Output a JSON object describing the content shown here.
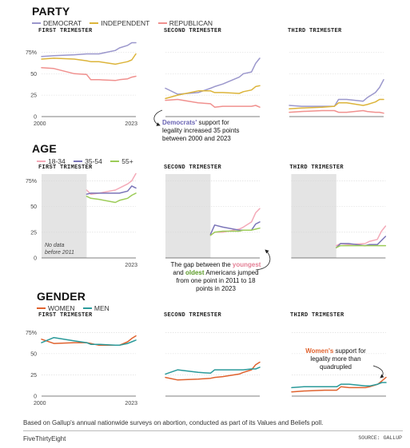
{
  "sections": [
    {
      "title": "PARTY",
      "legend": [
        {
          "label": "DEMOCRAT",
          "color": "#9b97cc"
        },
        {
          "label": "INDEPENDENT",
          "color": "#dcb43a"
        },
        {
          "label": "REPUBLICAN",
          "color": "#f0908e"
        }
      ]
    },
    {
      "title": "AGE",
      "legend": [
        {
          "label": "18-34",
          "color": "#f4aab8"
        },
        {
          "label": "35-54",
          "color": "#7a74b8"
        },
        {
          "label": "55+",
          "color": "#9ccc58"
        }
      ]
    },
    {
      "title": "GENDER",
      "legend": [
        {
          "label": "WOMEN",
          "color": "#e0622e"
        },
        {
          "label": "MEN",
          "color": "#2a9a9a"
        }
      ]
    }
  ],
  "chart_data": [
    {
      "type": "line",
      "section": 0,
      "title": "FIRST TRIMESTER",
      "x": [
        2000,
        2003,
        2008,
        2011,
        2012,
        2014,
        2018,
        2019,
        2021,
        2022,
        2023
      ],
      "series": [
        {
          "name": "DEMOCRAT",
          "color": "#9b97cc",
          "values": [
            70,
            71,
            72,
            73,
            73,
            73,
            77,
            80,
            83,
            86,
            86
          ]
        },
        {
          "name": "INDEPENDENT",
          "color": "#dcb43a",
          "values": [
            67,
            68,
            67,
            65,
            64,
            64,
            61,
            62,
            64,
            66,
            73
          ]
        },
        {
          "name": "REPUBLICAN",
          "color": "#f0908e",
          "values": [
            57,
            56,
            50,
            49,
            43,
            43,
            42,
            43,
            44,
            46,
            47
          ]
        }
      ],
      "ylim": [
        0,
        80
      ],
      "yticks": [
        0,
        25,
        50,
        75
      ],
      "ytick_labels": [
        "0",
        "25",
        "50",
        "75%"
      ],
      "xtick_labels": [
        "2000",
        "2023"
      ],
      "grid": true
    },
    {
      "type": "line",
      "section": 0,
      "title": "SECOND TRIMESTER",
      "x": [
        2000,
        2003,
        2008,
        2011,
        2012,
        2014,
        2018,
        2019,
        2021,
        2022,
        2023
      ],
      "series": [
        {
          "name": "DEMOCRAT",
          "color": "#9b97cc",
          "values": [
            33,
            26,
            28,
            33,
            35,
            38,
            46,
            50,
            52,
            62,
            68
          ]
        },
        {
          "name": "INDEPENDENT",
          "color": "#dcb43a",
          "values": [
            21,
            25,
            30,
            30,
            28,
            28,
            27,
            29,
            31,
            35,
            36
          ]
        },
        {
          "name": "REPUBLICAN",
          "color": "#f0908e",
          "values": [
            19,
            20,
            16,
            15,
            11,
            12,
            12,
            12,
            12,
            13,
            11
          ]
        }
      ],
      "ylim": [
        0,
        80
      ],
      "yticks": [
        0,
        25,
        50,
        75
      ],
      "grid": true
    },
    {
      "type": "line",
      "section": 0,
      "title": "THIRD TRIMESTER",
      "x": [
        2000,
        2003,
        2008,
        2011,
        2012,
        2014,
        2018,
        2019,
        2021,
        2022,
        2023
      ],
      "series": [
        {
          "name": "DEMOCRAT",
          "color": "#9b97cc",
          "values": [
            13,
            12,
            12,
            12,
            20,
            20,
            18,
            22,
            28,
            34,
            43
          ]
        },
        {
          "name": "INDEPENDENT",
          "color": "#dcb43a",
          "values": [
            9,
            10,
            11,
            12,
            16,
            16,
            13,
            14,
            17,
            20,
            20
          ]
        },
        {
          "name": "REPUBLICAN",
          "color": "#f0908e",
          "values": [
            5,
            6,
            7,
            7,
            5,
            5,
            7,
            6,
            5,
            5,
            4
          ]
        }
      ],
      "ylim": [
        0,
        80
      ],
      "yticks": [
        0,
        25,
        50,
        75
      ],
      "grid": true,
      "annotation": "Democrats' support for legality increased 35 points between 2000 and 2023"
    },
    {
      "type": "line",
      "section": 1,
      "title": "FIRST TRIMESTER",
      "x": [
        2011,
        2012,
        2014,
        2018,
        2019,
        2021,
        2022,
        2023
      ],
      "series": [
        {
          "name": "18-34",
          "color": "#f4aab8",
          "values": [
            66,
            62,
            63,
            66,
            68,
            72,
            75,
            82
          ]
        },
        {
          "name": "35-54",
          "color": "#7a74b8",
          "values": [
            62,
            63,
            63,
            63,
            63,
            65,
            70,
            68
          ]
        },
        {
          "name": "55+",
          "color": "#9ccc58",
          "values": [
            60,
            58,
            57,
            54,
            56,
            58,
            61,
            63
          ]
        }
      ],
      "xlim": [
        2000,
        2023
      ],
      "no_data_before": 2011,
      "ylim": [
        0,
        80
      ],
      "yticks": [
        0,
        25,
        50,
        75
      ],
      "ytick_labels": [
        "0",
        "25",
        "50",
        "75%"
      ],
      "xtick_labels": [
        "2023"
      ],
      "grid": true,
      "shade_label": [
        "No data",
        "before 2011"
      ]
    },
    {
      "type": "line",
      "section": 1,
      "title": "SECOND TRIMESTER",
      "x": [
        2011,
        2012,
        2014,
        2018,
        2019,
        2021,
        2022,
        2023
      ],
      "series": [
        {
          "name": "18-34",
          "color": "#f4aab8",
          "values": [
            22,
            25,
            25,
            28,
            30,
            35,
            44,
            48
          ]
        },
        {
          "name": "35-54",
          "color": "#7a74b8",
          "values": [
            23,
            32,
            30,
            27,
            27,
            27,
            33,
            35
          ]
        },
        {
          "name": "55+",
          "color": "#9ccc58",
          "values": [
            22,
            25,
            26,
            26,
            27,
            27,
            28,
            29
          ]
        }
      ],
      "xlim": [
        2000,
        2023
      ],
      "no_data_before": 2011,
      "ylim": [
        0,
        80
      ],
      "yticks": [
        0,
        25,
        50,
        75
      ],
      "grid": true,
      "annotation": "The gap between the youngest and oldest Americans jumped from one point in 2011 to 18 points in 2023"
    },
    {
      "type": "line",
      "section": 1,
      "title": "THIRD TRIMESTER",
      "x": [
        2011,
        2012,
        2014,
        2018,
        2019,
        2021,
        2022,
        2023
      ],
      "series": [
        {
          "name": "18-34",
          "color": "#f4aab8",
          "values": [
            12,
            14,
            13,
            14,
            16,
            18,
            26,
            31
          ]
        },
        {
          "name": "35-54",
          "color": "#7a74b8",
          "values": [
            10,
            14,
            14,
            12,
            13,
            13,
            17,
            21
          ]
        },
        {
          "name": "55+",
          "color": "#9ccc58",
          "values": [
            10,
            12,
            12,
            12,
            12,
            12,
            12,
            12
          ]
        }
      ],
      "xlim": [
        2000,
        2023
      ],
      "no_data_before": 2011,
      "ylim": [
        0,
        80
      ],
      "yticks": [
        0,
        25,
        50,
        75
      ],
      "grid": true
    },
    {
      "type": "line",
      "section": 2,
      "title": "FIRST TRIMESTER",
      "x": [
        2000,
        2003,
        2008,
        2011,
        2012,
        2014,
        2018,
        2019,
        2021,
        2022,
        2023
      ],
      "series": [
        {
          "name": "WOMEN",
          "color": "#e0622e",
          "values": [
            67,
            62,
            63,
            63,
            62,
            60,
            60,
            60,
            64,
            68,
            71
          ]
        },
        {
          "name": "MEN",
          "color": "#2a9a9a",
          "values": [
            63,
            69,
            65,
            63,
            61,
            61,
            60,
            60,
            62,
            64,
            66
          ]
        }
      ],
      "ylim": [
        0,
        80
      ],
      "yticks": [
        0,
        25,
        50,
        75
      ],
      "ytick_labels": [
        "0",
        "25",
        "50",
        "75%"
      ],
      "xtick_labels": [
        "2000",
        "2023"
      ],
      "grid": true
    },
    {
      "type": "line",
      "section": 2,
      "title": "SECOND TRIMESTER",
      "x": [
        2000,
        2003,
        2008,
        2011,
        2012,
        2014,
        2018,
        2019,
        2021,
        2022,
        2023
      ],
      "series": [
        {
          "name": "WOMEN",
          "color": "#e0622e",
          "values": [
            22,
            19,
            20,
            21,
            22,
            23,
            26,
            28,
            31,
            37,
            40
          ]
        },
        {
          "name": "MEN",
          "color": "#2a9a9a",
          "values": [
            26,
            31,
            28,
            27,
            31,
            31,
            31,
            31,
            32,
            32,
            34
          ]
        }
      ],
      "ylim": [
        0,
        80
      ],
      "yticks": [
        0,
        25,
        50,
        75
      ],
      "grid": true
    },
    {
      "type": "line",
      "section": 2,
      "title": "THIRD TRIMESTER",
      "x": [
        2000,
        2003,
        2008,
        2011,
        2012,
        2014,
        2018,
        2019,
        2021,
        2022,
        2023
      ],
      "series": [
        {
          "name": "WOMEN",
          "color": "#e0622e",
          "values": [
            5,
            6,
            7,
            7,
            11,
            10,
            10,
            11,
            14,
            18,
            22
          ]
        },
        {
          "name": "MEN",
          "color": "#2a9a9a",
          "values": [
            10,
            11,
            11,
            11,
            14,
            14,
            12,
            12,
            14,
            16,
            16
          ]
        }
      ],
      "ylim": [
        0,
        80
      ],
      "yticks": [
        0,
        25,
        50,
        75
      ],
      "grid": true,
      "annotation": "Women's support for legality more than quadrupled"
    }
  ],
  "footer": {
    "note": "Based on Gallup's annual nationwide surveys on abortion, conducted as part of its Values and Beliefs poll.",
    "brand": "FiveThirtyEight",
    "source": "SOURCE: GALLUP"
  }
}
